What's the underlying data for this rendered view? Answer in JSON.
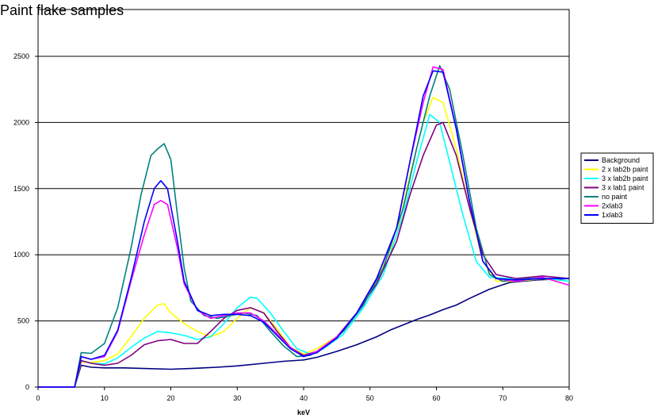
{
  "chart_data": {
    "type": "line",
    "title": "Paint flake samples",
    "xlabel": "keV",
    "ylabel": "",
    "xlim": [
      0,
      80
    ],
    "ylim": [
      0,
      2500
    ],
    "x_ticks": [
      0,
      10,
      20,
      30,
      40,
      50,
      60,
      70,
      80
    ],
    "y_ticks": [
      0,
      500,
      1000,
      1500,
      2000,
      2500
    ],
    "grid": "horizontal",
    "legend_position": "right",
    "series": [
      {
        "name": "Background",
        "color": "#000080",
        "points": [
          [
            0,
            0
          ],
          [
            5.5,
            0
          ],
          [
            6.5,
            165
          ],
          [
            8,
            150
          ],
          [
            10,
            145
          ],
          [
            13,
            145
          ],
          [
            16,
            140
          ],
          [
            20,
            135
          ],
          [
            23,
            140
          ],
          [
            27,
            150
          ],
          [
            30,
            160
          ],
          [
            34,
            180
          ],
          [
            37,
            195
          ],
          [
            40,
            205
          ],
          [
            42,
            225
          ],
          [
            45,
            270
          ],
          [
            48,
            320
          ],
          [
            51,
            380
          ],
          [
            53,
            430
          ],
          [
            55,
            470
          ],
          [
            57,
            510
          ],
          [
            59,
            545
          ],
          [
            61,
            585
          ],
          [
            63,
            620
          ],
          [
            65,
            670
          ],
          [
            68,
            740
          ],
          [
            71,
            790
          ],
          [
            75,
            810
          ],
          [
            80,
            820
          ]
        ]
      },
      {
        "name": "2 x lab2b paint",
        "color": "#ffff00",
        "points": [
          [
            0,
            0
          ],
          [
            5.5,
            0
          ],
          [
            6.5,
            190
          ],
          [
            8,
            185
          ],
          [
            10,
            200
          ],
          [
            12,
            250
          ],
          [
            14,
            380
          ],
          [
            16,
            520
          ],
          [
            18,
            620
          ],
          [
            19,
            630
          ],
          [
            20,
            560
          ],
          [
            22,
            480
          ],
          [
            24,
            420
          ],
          [
            26,
            380
          ],
          [
            28,
            420
          ],
          [
            30,
            520
          ],
          [
            32,
            600
          ],
          [
            34,
            560
          ],
          [
            36,
            440
          ],
          [
            38,
            300
          ],
          [
            40,
            250
          ],
          [
            42,
            290
          ],
          [
            45,
            380
          ],
          [
            48,
            560
          ],
          [
            51,
            800
          ],
          [
            54,
            1150
          ],
          [
            56,
            1600
          ],
          [
            58,
            2000
          ],
          [
            59.5,
            2190
          ],
          [
            61,
            2150
          ],
          [
            63,
            1800
          ],
          [
            65,
            1350
          ],
          [
            67,
            950
          ],
          [
            69,
            800
          ],
          [
            72,
            800
          ],
          [
            76,
            820
          ],
          [
            80,
            800
          ]
        ]
      },
      {
        "name": "3 x lab2b paint",
        "color": "#00ffff",
        "points": [
          [
            0,
            0
          ],
          [
            5.5,
            0
          ],
          [
            6.5,
            200
          ],
          [
            8,
            180
          ],
          [
            10,
            175
          ],
          [
            12,
            220
          ],
          [
            14,
            300
          ],
          [
            16,
            370
          ],
          [
            18,
            420
          ],
          [
            20,
            410
          ],
          [
            22,
            390
          ],
          [
            24,
            360
          ],
          [
            26,
            380
          ],
          [
            28,
            480
          ],
          [
            30,
            600
          ],
          [
            32,
            680
          ],
          [
            33,
            670
          ],
          [
            35,
            560
          ],
          [
            37,
            420
          ],
          [
            39,
            290
          ],
          [
            41,
            250
          ],
          [
            43,
            290
          ],
          [
            46,
            400
          ],
          [
            49,
            600
          ],
          [
            52,
            850
          ],
          [
            55,
            1300
          ],
          [
            57,
            1700
          ],
          [
            59,
            2060
          ],
          [
            60.5,
            2000
          ],
          [
            62,
            1700
          ],
          [
            64,
            1300
          ],
          [
            66,
            950
          ],
          [
            68,
            830
          ],
          [
            71,
            820
          ],
          [
            75,
            830
          ],
          [
            80,
            800
          ]
        ]
      },
      {
        "name": "3 x lab1 paint",
        "color": "#800080",
        "points": [
          [
            0,
            0
          ],
          [
            5.5,
            0
          ],
          [
            6.5,
            200
          ],
          [
            8,
            180
          ],
          [
            10,
            165
          ],
          [
            12,
            180
          ],
          [
            14,
            240
          ],
          [
            16,
            320
          ],
          [
            18,
            350
          ],
          [
            20,
            360
          ],
          [
            22,
            330
          ],
          [
            24,
            330
          ],
          [
            26,
            420
          ],
          [
            28,
            520
          ],
          [
            30,
            580
          ],
          [
            32,
            600
          ],
          [
            34,
            560
          ],
          [
            36,
            420
          ],
          [
            38,
            300
          ],
          [
            40,
            240
          ],
          [
            42,
            270
          ],
          [
            45,
            380
          ],
          [
            48,
            560
          ],
          [
            51,
            780
          ],
          [
            54,
            1100
          ],
          [
            56,
            1450
          ],
          [
            58,
            1750
          ],
          [
            60,
            1980
          ],
          [
            61,
            2000
          ],
          [
            63,
            1750
          ],
          [
            65,
            1350
          ],
          [
            67,
            1000
          ],
          [
            69,
            850
          ],
          [
            72,
            820
          ],
          [
            76,
            840
          ],
          [
            80,
            820
          ]
        ]
      },
      {
        "name": "no paint",
        "color": "#008080",
        "points": [
          [
            0,
            0
          ],
          [
            5.5,
            0
          ],
          [
            6.5,
            260
          ],
          [
            8,
            255
          ],
          [
            10,
            330
          ],
          [
            12,
            600
          ],
          [
            14,
            1050
          ],
          [
            15.5,
            1450
          ],
          [
            17,
            1750
          ],
          [
            18,
            1800
          ],
          [
            19,
            1840
          ],
          [
            20,
            1720
          ],
          [
            21,
            1300
          ],
          [
            22,
            900
          ],
          [
            23,
            650
          ],
          [
            25,
            540
          ],
          [
            27,
            520
          ],
          [
            29,
            540
          ],
          [
            31,
            560
          ],
          [
            33,
            540
          ],
          [
            35,
            420
          ],
          [
            37,
            310
          ],
          [
            39,
            230
          ],
          [
            41,
            240
          ],
          [
            43,
            300
          ],
          [
            46,
            420
          ],
          [
            49,
            620
          ],
          [
            52,
            900
          ],
          [
            55,
            1350
          ],
          [
            57,
            1800
          ],
          [
            59,
            2200
          ],
          [
            60.5,
            2430
          ],
          [
            62,
            2250
          ],
          [
            64,
            1750
          ],
          [
            66,
            1200
          ],
          [
            68,
            850
          ],
          [
            70,
            800
          ],
          [
            74,
            820
          ],
          [
            80,
            820
          ]
        ]
      },
      {
        "name": "2xlab3",
        "color": "#ff00ff",
        "points": [
          [
            0,
            0
          ],
          [
            5.5,
            0
          ],
          [
            6.5,
            230
          ],
          [
            8,
            210
          ],
          [
            10,
            230
          ],
          [
            12,
            420
          ],
          [
            14,
            800
          ],
          [
            16,
            1150
          ],
          [
            17.5,
            1380
          ],
          [
            18.5,
            1410
          ],
          [
            19.5,
            1380
          ],
          [
            21,
            1050
          ],
          [
            22,
            780
          ],
          [
            24,
            580
          ],
          [
            26,
            520
          ],
          [
            28,
            540
          ],
          [
            30,
            560
          ],
          [
            32,
            560
          ],
          [
            34,
            500
          ],
          [
            36,
            400
          ],
          [
            38,
            300
          ],
          [
            40,
            230
          ],
          [
            42,
            270
          ],
          [
            45,
            380
          ],
          [
            48,
            560
          ],
          [
            51,
            820
          ],
          [
            54,
            1200
          ],
          [
            56,
            1700
          ],
          [
            58,
            2150
          ],
          [
            59.5,
            2420
          ],
          [
            61,
            2400
          ],
          [
            63,
            1950
          ],
          [
            65,
            1400
          ],
          [
            67,
            950
          ],
          [
            69,
            820
          ],
          [
            72,
            800
          ],
          [
            76,
            830
          ],
          [
            80,
            770
          ]
        ]
      },
      {
        "name": "1xlab3",
        "color": "#0000ff",
        "points": [
          [
            0,
            0
          ],
          [
            5.5,
            0
          ],
          [
            6.5,
            230
          ],
          [
            8,
            210
          ],
          [
            10,
            240
          ],
          [
            12,
            430
          ],
          [
            14,
            820
          ],
          [
            16,
            1250
          ],
          [
            17.5,
            1500
          ],
          [
            18.5,
            1560
          ],
          [
            19.5,
            1500
          ],
          [
            21,
            1100
          ],
          [
            22,
            800
          ],
          [
            24,
            580
          ],
          [
            26,
            540
          ],
          [
            28,
            550
          ],
          [
            30,
            550
          ],
          [
            32,
            540
          ],
          [
            34,
            490
          ],
          [
            36,
            390
          ],
          [
            38,
            290
          ],
          [
            40,
            230
          ],
          [
            42,
            260
          ],
          [
            45,
            370
          ],
          [
            48,
            560
          ],
          [
            51,
            820
          ],
          [
            54,
            1200
          ],
          [
            56,
            1700
          ],
          [
            58,
            2200
          ],
          [
            59.5,
            2390
          ],
          [
            61,
            2380
          ],
          [
            63,
            1950
          ],
          [
            65,
            1400
          ],
          [
            67,
            950
          ],
          [
            69,
            820
          ],
          [
            72,
            810
          ],
          [
            76,
            820
          ],
          [
            80,
            820
          ]
        ]
      }
    ]
  }
}
